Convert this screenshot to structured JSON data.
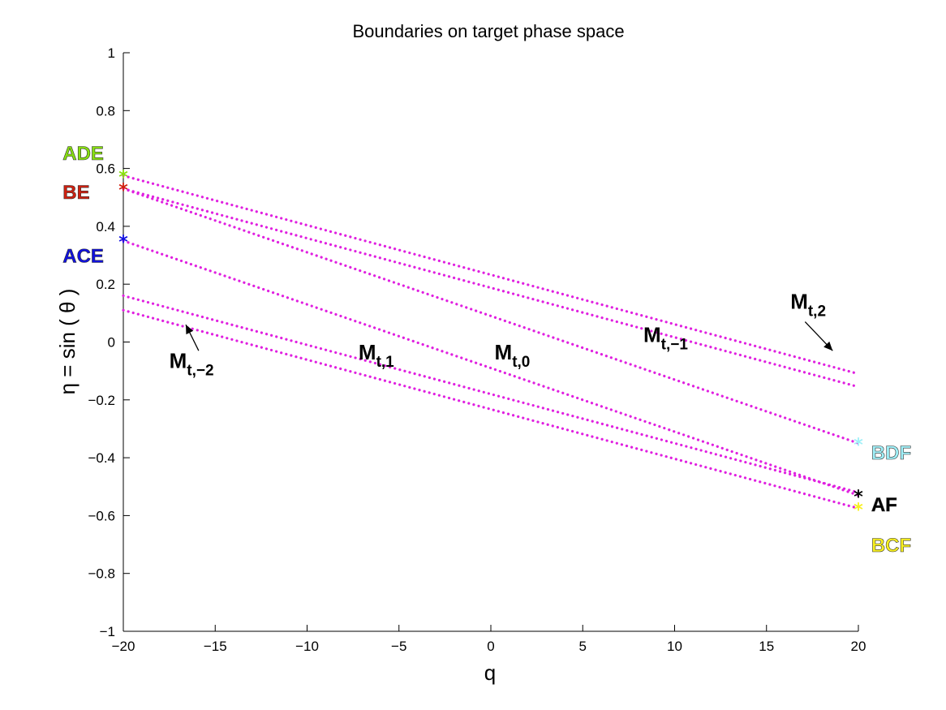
{
  "chart_data": {
    "type": "scatter",
    "title": "Boundaries on target phase space",
    "xlabel": "q",
    "ylabel": "η = sin ( θ )",
    "xlim": [
      -20,
      20
    ],
    "ylim": [
      -1,
      1
    ],
    "xticks": [
      -20,
      -15,
      -10,
      -5,
      0,
      5,
      10,
      15,
      20
    ],
    "yticks": [
      -1,
      -0.8,
      -0.6,
      -0.4,
      -0.2,
      0,
      0.2,
      0.4,
      0.6,
      0.8,
      1
    ],
    "xtick_labels": [
      "−20",
      "−15",
      "−10",
      "−5",
      "0",
      "5",
      "10",
      "15",
      "20"
    ],
    "ytick_labels": [
      "−1",
      "−0.8",
      "−0.6",
      "−0.4",
      "−0.2",
      "0",
      "0.2",
      "0.4",
      "0.6",
      "0.8",
      "1"
    ],
    "grid": false,
    "line_color": "#e020e0",
    "series": [
      {
        "x": [
          -20,
          20
        ],
        "y": [
          0.575,
          -0.11
        ]
      },
      {
        "x": [
          -20,
          20
        ],
        "y": [
          0.53,
          -0.155
        ]
      },
      {
        "x": [
          -20,
          20
        ],
        "y": [
          0.53,
          -0.35
        ]
      },
      {
        "x": [
          -20,
          20
        ],
        "y": [
          0.35,
          -0.53
        ]
      },
      {
        "x": [
          -20,
          20
        ],
        "y": [
          0.16,
          -0.52
        ]
      },
      {
        "x": [
          -20,
          20
        ],
        "y": [
          0.11,
          -0.575
        ]
      }
    ],
    "markers": [
      {
        "label": "ADE",
        "x": -20,
        "y": 0.575,
        "color": "#88e010",
        "label_x": -23.3,
        "label_y": 0.655
      },
      {
        "label": "BE",
        "x": -20,
        "y": 0.53,
        "color": "#d02010",
        "label_x": -23.3,
        "label_y": 0.52
      },
      {
        "label": "ACE",
        "x": -20,
        "y": 0.35,
        "color": "#1010e0",
        "label_x": -23.3,
        "label_y": 0.3
      },
      {
        "label": "BDF",
        "x": 20,
        "y": -0.35,
        "color": "#a0f0f8",
        "label_x": 20.7,
        "label_y": -0.38
      },
      {
        "label": "AF",
        "x": 20,
        "y": -0.53,
        "color": "#000000",
        "label_x": 20.7,
        "label_y": -0.56
      },
      {
        "label": "BCF",
        "x": 20,
        "y": -0.575,
        "color": "#f8f020",
        "label_x": 20.7,
        "label_y": -0.7
      }
    ],
    "annotations": [
      {
        "main": "M",
        "sub": "t,2",
        "x": 16.3,
        "y": 0.115
      },
      {
        "main": "M",
        "sub": "t,−1",
        "x": 8.3,
        "y": 0.0
      },
      {
        "main": "M",
        "sub": "t,0",
        "x": 0.2,
        "y": -0.06
      },
      {
        "main": "M",
        "sub": "t,1",
        "x": -7.2,
        "y": -0.06
      },
      {
        "main": "M",
        "sub": "t,−2",
        "x": -17.5,
        "y": -0.09
      }
    ],
    "arrows": [
      {
        "from": [
          17.1,
          0.07
        ],
        "to": [
          18.6,
          -0.03
        ]
      },
      {
        "from": [
          -15.9,
          -0.03
        ],
        "to": [
          -16.6,
          0.06
        ]
      }
    ]
  }
}
